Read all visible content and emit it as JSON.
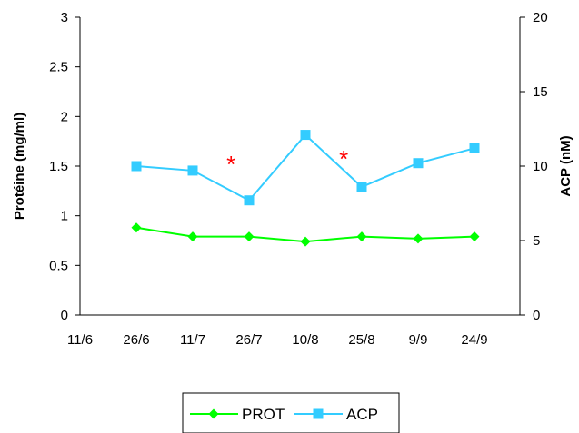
{
  "chart_data": {
    "type": "line",
    "x_tick_labels": [
      "11/6",
      "26/6",
      "11/7",
      "26/7",
      "10/8",
      "25/8",
      "9/9",
      "24/9"
    ],
    "categories": [
      "26/6",
      "11/7",
      "26/7",
      "10/8",
      "25/8",
      "9/9",
      "24/9"
    ],
    "ylabel_left": "Protéine (mg/ml)",
    "ylabel_right": "ACP (nM)",
    "ylim_left": [
      0,
      3
    ],
    "ylim_right": [
      0,
      20
    ],
    "y_ticks_left": [
      "0",
      "0.5",
      "1",
      "1.5",
      "2",
      "2.5",
      "3"
    ],
    "y_ticks_right": [
      "0",
      "5",
      "10",
      "15",
      "20"
    ],
    "grid": false,
    "legend_position": "bottom",
    "series": [
      {
        "name": "PROT",
        "axis": "left",
        "color": "#00ff00",
        "marker": "diamond",
        "values": [
          0.88,
          0.79,
          0.79,
          0.74,
          0.79,
          0.77,
          0.79
        ]
      },
      {
        "name": "ACP",
        "axis": "right",
        "color": "#33ccff",
        "marker": "square",
        "values": [
          10.0,
          9.7,
          7.7,
          12.1,
          8.6,
          10.2,
          11.2
        ]
      }
    ],
    "annotations": [
      {
        "text": "*",
        "x_between": [
          "11/7",
          "26/7"
        ],
        "color": "#ff0000"
      },
      {
        "text": "*",
        "x_between": [
          "10/8",
          "25/8"
        ],
        "color": "#ff0000"
      }
    ]
  }
}
